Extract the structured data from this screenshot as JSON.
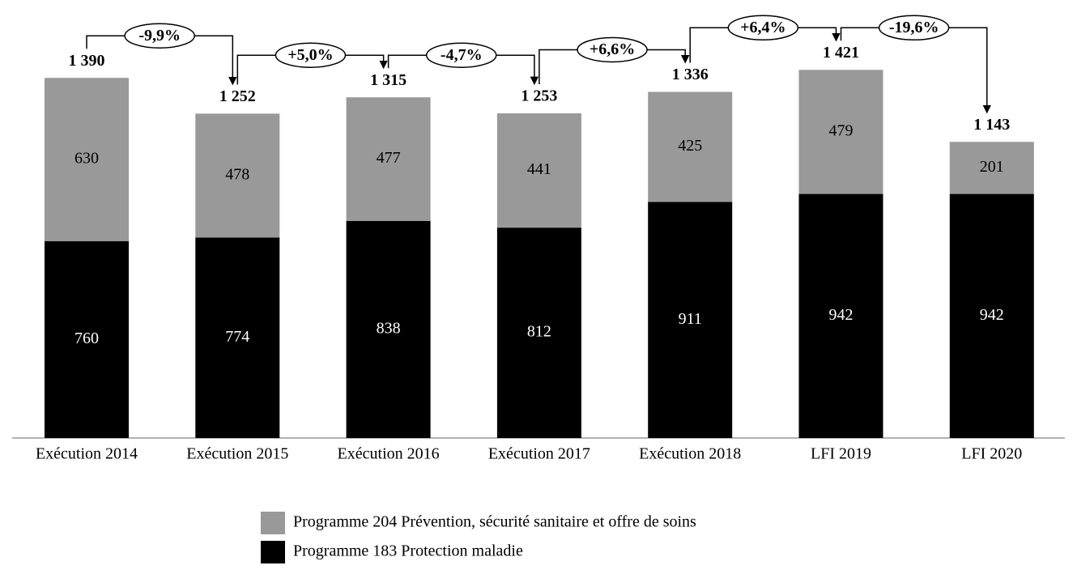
{
  "chart_data": {
    "type": "stacked-bar",
    "categories": [
      "Exécution 2014",
      "Exécution 2015",
      "Exécution 2016",
      "Exécution 2017",
      "Exécution 2018",
      "LFI 2019",
      "LFI 2020"
    ],
    "series": [
      {
        "name": "Programme 183 Protection maladie",
        "color": "#000000",
        "values": [
          760,
          774,
          838,
          812,
          911,
          942,
          942
        ]
      },
      {
        "name": "Programme 204 Prévention, sécurité sanitaire et offre de soins",
        "color": "#999999",
        "values": [
          630,
          478,
          477,
          441,
          425,
          479,
          201
        ]
      }
    ],
    "totals": {
      "values": [
        1390,
        1252,
        1315,
        1253,
        1336,
        1421,
        1143
      ],
      "value_labels": [
        "1 390",
        "1 252",
        "1 315",
        "1 253",
        "1 336",
        "1 421",
        "1 143"
      ]
    },
    "changes": {
      "values": [
        -9.9,
        5.0,
        -4.7,
        6.6,
        6.4,
        -19.6
      ],
      "value_labels": [
        "-9,9%",
        "+5,0%",
        "-4,7%",
        "+6,6%",
        "+6,4%",
        "-19,6%"
      ]
    }
  }
}
